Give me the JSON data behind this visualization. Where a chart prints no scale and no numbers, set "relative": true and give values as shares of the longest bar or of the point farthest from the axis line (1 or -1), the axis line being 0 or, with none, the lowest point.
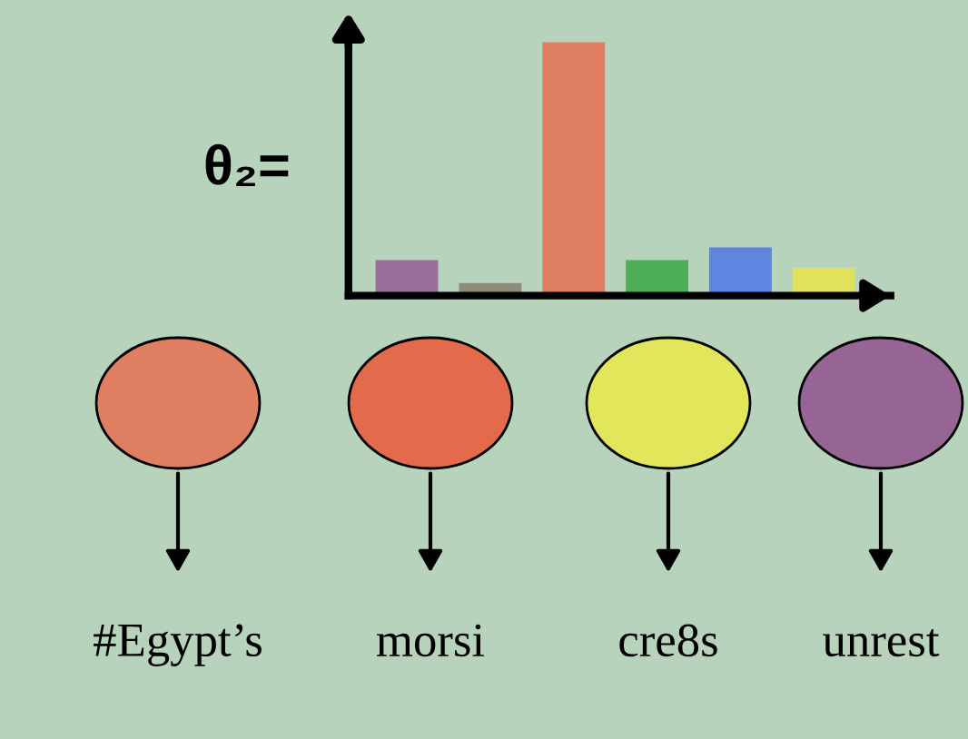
{
  "chart_data": {
    "type": "bar",
    "relative": true,
    "title": "θ₂=",
    "categories": [
      null,
      null,
      null,
      null,
      null,
      null
    ],
    "values": [
      0.14,
      0.05,
      1,
      0.14,
      0.19,
      0.11
    ],
    "colors": [
      "#9b6f9b",
      "#8e8c78",
      "#e07e62",
      "#4cae55",
      "#5e85e0",
      "#e2e25a"
    ],
    "annotations": [
      "#Egypt’s",
      "morsi",
      "cre8s",
      "unrest"
    ]
  }
}
